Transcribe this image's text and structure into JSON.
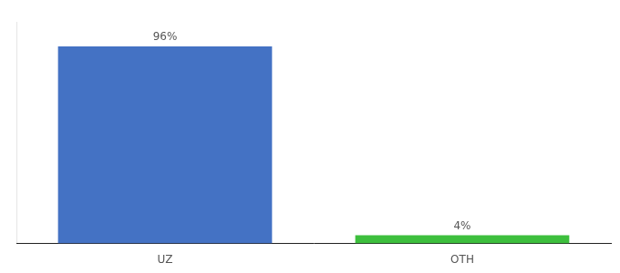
{
  "chart_data": {
    "type": "bar",
    "categories": [
      "UZ",
      "OTH"
    ],
    "values": [
      96,
      4
    ],
    "value_labels": [
      "96%",
      "4%"
    ],
    "colors": [
      "#4472c4",
      "#3dbf3d"
    ],
    "ylim": [
      0,
      108
    ],
    "data_labels": true,
    "tick_labels": "x",
    "grid": false
  }
}
